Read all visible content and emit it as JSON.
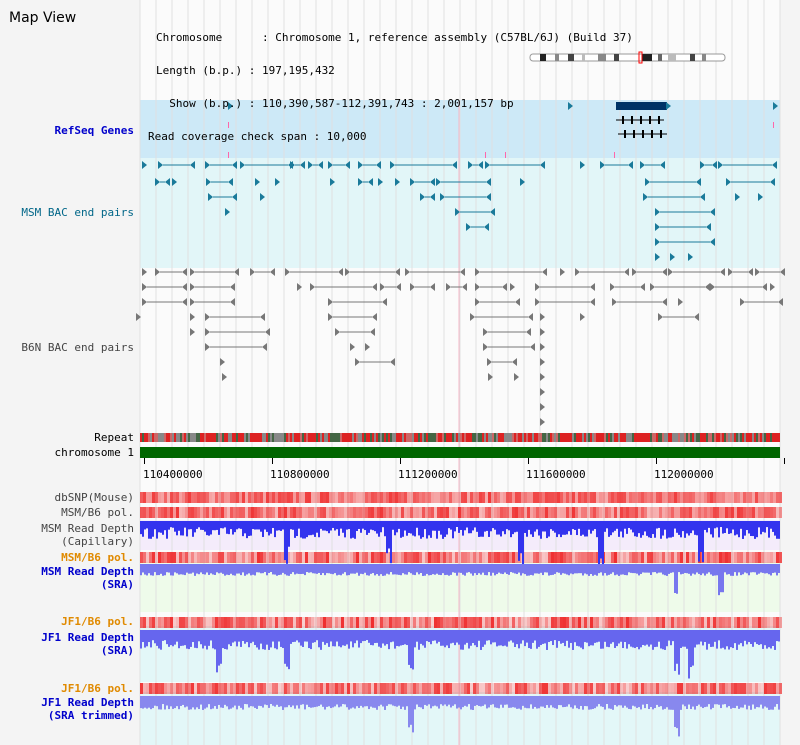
{
  "title": "Map View",
  "info": {
    "chromosome_line": "Chromosome      : Chromosome 1, reference assembly (C57BL/6J) (Build 37)",
    "length_line": "Length (b.p.) : 197,195,432",
    "show_line": "  Show (b.p.) : 110,390,587-112,391,743 : 2,001,157 bp",
    "coverage_line": "Read coverage check span : 10,000"
  },
  "tracks": {
    "refseq": "RefSeq Genes",
    "msm_bac": "MSM BAC end pairs",
    "b6n_bac": "B6N BAC end pairs",
    "repeat": "Repeat",
    "chromosome": "chromosome 1",
    "dbsnp": "dbSNP(Mouse)",
    "msm_b6_pol_1": "MSM/B6 pol.",
    "msm_read_depth_cap": "MSM Read Depth\n(Capillary)",
    "msm_b6_pol_2": "MSM/B6 pol.",
    "msm_read_depth_sra": "MSM Read Depth\n(SRA)",
    "jf1_b6_pol_1": "JF1/B6 pol.",
    "jf1_read_depth_sra": "JF1 Read Depth\n(SRA)",
    "jf1_b6_pol_2": "JF1/B6 pol.",
    "jf1_read_depth_trim": "JF1 Read Depth\n(SRA trimmed)"
  },
  "axis_ticks": [
    "110400000",
    "110800000",
    "111200000",
    "111600000",
    "112000000"
  ],
  "colors": {
    "refseq_bg": "#cde9f7",
    "msm_bg": "#e2f6f8",
    "chrom_bar": "#006600",
    "gene_fill": "#003366",
    "msm_feature": "#1a7a9a",
    "b6n_feature": "#777777",
    "depth_blue": "#3333ff",
    "snp_red": "#ee2222"
  }
}
